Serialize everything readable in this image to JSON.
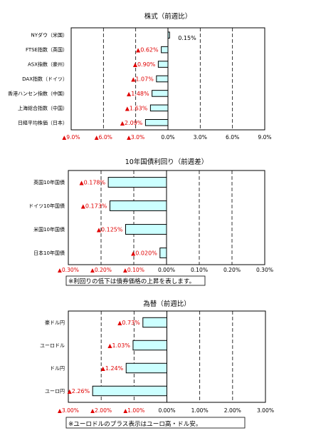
{
  "chart_data": [
    {
      "type": "bar",
      "orientation": "horizontal",
      "title": "株式（前週比）",
      "categories": [
        "NYダウ（米国）",
        "FTSE指数（英国）",
        "ASX指数（豪州）",
        "DAX指数（ドイツ）",
        "香港ハンセン指数（中国）",
        "上海総合指数（中国）",
        "日経平均株価（日本）"
      ],
      "values": [
        0.15,
        -0.62,
        -0.9,
        -1.07,
        -1.48,
        -1.63,
        -2.09
      ],
      "data_labels": [
        "0.15%",
        "▲0.62%",
        "▲0.90%",
        "▲1.07%",
        "▲1.48%",
        "▲1.63%",
        "▲2.09%"
      ],
      "xlim": [
        -9,
        9
      ],
      "ticks": [
        -9,
        -6,
        -3,
        0,
        3,
        6,
        9
      ],
      "tick_labels": [
        "▲9.0%",
        "▲6.0%",
        "▲3.0%",
        "0.0%",
        "3.0%",
        "6.0%",
        "9.0%"
      ],
      "grid": true,
      "note": ""
    },
    {
      "type": "bar",
      "orientation": "horizontal",
      "title": "10年国債利回り（前週差）",
      "categories": [
        "英国10年国債",
        "ドイツ10年国債",
        "米国10年国債",
        "日本10年国債"
      ],
      "values": [
        -0.178,
        -0.173,
        -0.125,
        -0.02
      ],
      "data_labels": [
        "▲0.178%",
        "▲0.173%",
        "▲0.125%",
        "▲0.020%"
      ],
      "xlim": [
        -0.3,
        0.3
      ],
      "ticks": [
        -0.3,
        -0.2,
        -0.1,
        0,
        0.1,
        0.2,
        0.3
      ],
      "tick_labels": [
        "▲0.30%",
        "▲0.20%",
        "▲0.10%",
        "0.00%",
        "0.10%",
        "0.20%",
        "0.30%"
      ],
      "grid": true,
      "note": "※利回りの低下は債券価格の上昇を表します。"
    },
    {
      "type": "bar",
      "orientation": "horizontal",
      "title": "為替（前週比）",
      "categories": [
        "豪ドル円",
        "ユーロドル",
        "ドル円",
        "ユーロ円"
      ],
      "values": [
        -0.73,
        -1.03,
        -1.24,
        -2.26
      ],
      "data_labels": [
        "▲0.73%",
        "▲1.03%",
        "▲1.24%",
        "▲2.26%"
      ],
      "xlim": [
        -3,
        3
      ],
      "ticks": [
        -3,
        -2,
        -1,
        0,
        1,
        2,
        3
      ],
      "tick_labels": [
        "▲3.00%",
        "▲2.00%",
        "▲1.00%",
        "0.00%",
        "1.00%",
        "2.00%",
        "3.00%"
      ],
      "grid": true,
      "note": "※ユーロドルのプラス表示はユーロ高・ドル安。"
    }
  ]
}
